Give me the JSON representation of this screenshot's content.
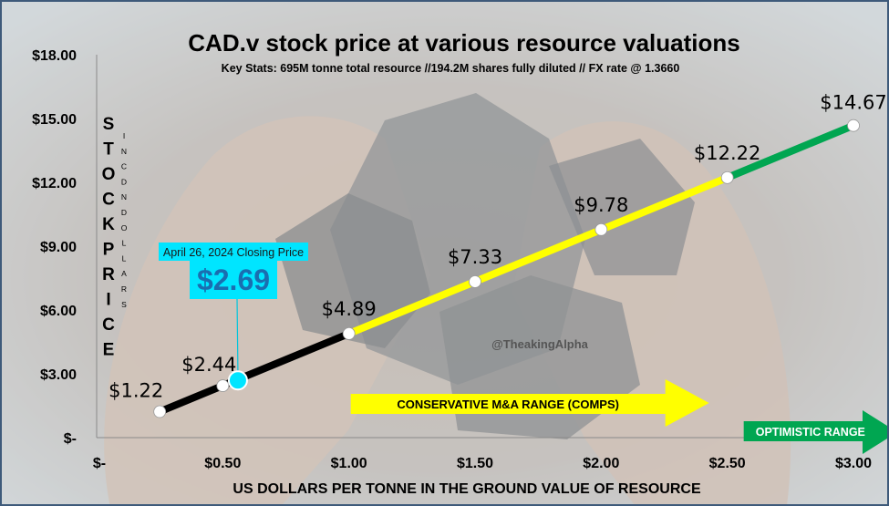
{
  "chart_data": {
    "type": "line",
    "title": "CAD.v stock price at various resource valuations",
    "subtitle": "Key Stats: 695M tonne total resource //194.2M shares fully diluted // FX rate @ 1.3660",
    "xlabel": "US DOLLARS PER TONNE IN THE GROUND VALUE OF RESOURCE",
    "ylabel_main": "STOCK PRICE",
    "ylabel_sub": "IN CDN DOLLARS",
    "x_ticks": [
      "$-",
      "$0.50",
      "$1.00",
      "$1.50",
      "$2.00",
      "$2.50",
      "$3.00"
    ],
    "y_ticks": [
      "$-",
      "$3.00",
      "$6.00",
      "$9.00",
      "$12.00",
      "$15.00",
      "$18.00"
    ],
    "xlim": [
      0,
      3
    ],
    "ylim": [
      0,
      18
    ],
    "x": [
      0.25,
      0.5,
      1.0,
      1.5,
      2.0,
      2.5,
      3.0
    ],
    "y": [
      1.22,
      2.44,
      4.89,
      7.33,
      9.78,
      12.22,
      14.67
    ],
    "point_labels": [
      "$1.22",
      "$2.44",
      "$4.89",
      "$7.33",
      "$9.78",
      "$12.22",
      "$14.67"
    ],
    "segments": [
      {
        "from": 0,
        "to": 2,
        "color": "#000000"
      },
      {
        "from": 2,
        "to": 5,
        "color": "#ffff00"
      },
      {
        "from": 5,
        "to": 6,
        "color": "#00a651"
      }
    ],
    "current_price": {
      "x": 0.56,
      "y": 2.69,
      "date_label": "April 26, 2024 Closing Price",
      "value_label": "$2.69",
      "color": "#00e5ff"
    },
    "ranges": [
      {
        "label": "CONSERVATIVE M&A RANGE (COMPS)",
        "from_x": 1.0,
        "to_x": 2.5,
        "color": "#ffff00"
      },
      {
        "label": "OPTIMISTIC RANGE",
        "from_x": 2.5,
        "to_x": 3.0,
        "color": "#00a651"
      }
    ],
    "watermark": "@TheakingAlpha",
    "grid": false
  }
}
